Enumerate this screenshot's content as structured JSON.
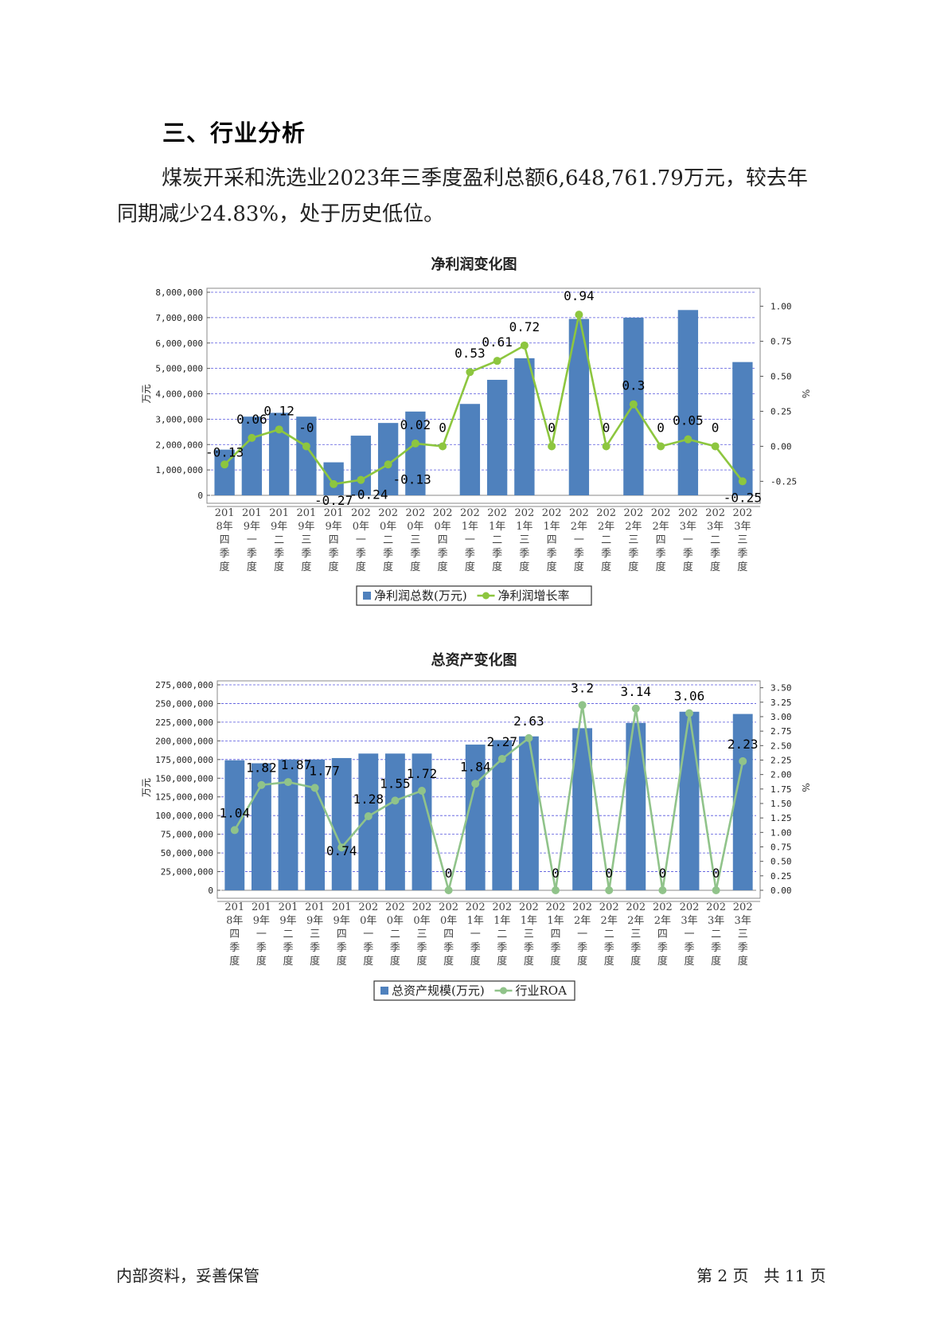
{
  "section": {
    "title": "三、行业分析"
  },
  "paragraph": {
    "line1": "煤炭开采和洗选业2023年三季度盈利总额6,648,761.79万元，较去年",
    "line2": "同期减少24.83%，处于历史低位。"
  },
  "footer": {
    "left": "内部资料，妥善保管",
    "right": "第 2 页   共 11 页"
  },
  "colors": {
    "bar": "#4f81bd",
    "line": "#8dc63f",
    "line2": "#90c38a",
    "grid": "#5555dd"
  },
  "chart_data": [
    {
      "type": "bar",
      "title": "净利润变化图",
      "ylabel": "万元",
      "y2label": "%",
      "ylim": [
        0,
        8000000
      ],
      "y2lim": [
        -0.35,
        1.1
      ],
      "yticks": [
        "8,000,000",
        "7,000,000",
        "6,000,000",
        "5,000,000",
        "4,000,000",
        "3,000,000",
        "2,000,000",
        "1,000,000",
        "0"
      ],
      "y2ticks": [
        "1.00",
        "0.75",
        "0.50",
        "0.25",
        "0.00",
        "-0.25"
      ],
      "categories": [
        "2018年四季度",
        "2019年一季度",
        "2019年二季度",
        "2019年三季度",
        "2019年四季度",
        "2020年一季度",
        "2020年二季度",
        "2020年三季度",
        "2020年四季度",
        "2021年一季度",
        "2021年二季度",
        "2021年三季度",
        "2021年四季度",
        "2022年一季度",
        "2022年二季度",
        "2022年三季度",
        "2022年四季度",
        "2023年一季度",
        "2023年二季度",
        "2023年三季度"
      ],
      "category_lines": [
        [
          "201",
          "8年",
          "四",
          "季",
          "度"
        ],
        [
          "201",
          "9年",
          "一",
          "季",
          "度"
        ],
        [
          "201",
          "9年",
          "二",
          "季",
          "度"
        ],
        [
          "201",
          "9年",
          "三",
          "季",
          "度"
        ],
        [
          "201",
          "9年",
          "四",
          "季",
          "度"
        ],
        [
          "202",
          "0年",
          "一",
          "季",
          "度"
        ],
        [
          "202",
          "0年",
          "二",
          "季",
          "度"
        ],
        [
          "202",
          "0年",
          "三",
          "季",
          "度"
        ],
        [
          "202",
          "0年",
          "四",
          "季",
          "度"
        ],
        [
          "202",
          "1年",
          "一",
          "季",
          "度"
        ],
        [
          "202",
          "1年",
          "二",
          "季",
          "度"
        ],
        [
          "202",
          "1年",
          "三",
          "季",
          "度"
        ],
        [
          "202",
          "1年",
          "四",
          "季",
          "度"
        ],
        [
          "202",
          "2年",
          "一",
          "季",
          "度"
        ],
        [
          "202",
          "2年",
          "二",
          "季",
          "度"
        ],
        [
          "202",
          "2年",
          "三",
          "季",
          "度"
        ],
        [
          "202",
          "2年",
          "四",
          "季",
          "度"
        ],
        [
          "202",
          "3年",
          "一",
          "季",
          "度"
        ],
        [
          "202",
          "3年",
          "二",
          "季",
          "度"
        ],
        [
          "202",
          "3年",
          "三",
          "季",
          "度"
        ]
      ],
      "series": [
        {
          "name": "净利润总数(万元)",
          "kind": "bar",
          "values": [
            1800000,
            3100000,
            3250000,
            3100000,
            1300000,
            2350000,
            2850000,
            3300000,
            0,
            3600000,
            4550000,
            5400000,
            0,
            6950000,
            0,
            7000000,
            0,
            7300000,
            0,
            5250000
          ]
        },
        {
          "name": "净利润增长率",
          "kind": "line",
          "values": [
            -0.13,
            0.06,
            0.12,
            -0.0,
            -0.27,
            -0.24,
            -0.13,
            0.02,
            0,
            0.53,
            0.61,
            0.72,
            0,
            0.94,
            0,
            0.3,
            0,
            0.05,
            0,
            -0.25
          ]
        }
      ],
      "labels": [
        "-0.13",
        "0.06",
        "0.12",
        "-0",
        "-0.27",
        "-0.24",
        "-0.13",
        "0.02",
        "0",
        "0.53",
        "0.61",
        "0.72",
        "0",
        "0.94",
        "0",
        "0.3",
        "0",
        "0.05",
        "0",
        "-0.25"
      ],
      "legend": "bottom",
      "grid": true
    },
    {
      "type": "bar",
      "title": "总资产变化图",
      "ylabel": "万元",
      "y2label": "%",
      "ylim": [
        0,
        275000000
      ],
      "y2lim": [
        0,
        3.55
      ],
      "yticks": [
        "275,000,000",
        "250,000,000",
        "225,000,000",
        "200,000,000",
        "175,000,000",
        "150,000,000",
        "125,000,000",
        "100,000,000",
        "75,000,000",
        "50,000,000",
        "25,000,000",
        "0"
      ],
      "y2ticks": [
        "3.50",
        "3.25",
        "3.00",
        "2.75",
        "2.50",
        "2.25",
        "2.00",
        "1.75",
        "1.50",
        "1.25",
        "1.00",
        "0.75",
        "0.50",
        "0.25",
        "0.00"
      ],
      "category_lines": [
        [
          "201",
          "8年",
          "四",
          "季",
          "度"
        ],
        [
          "201",
          "9年",
          "一",
          "季",
          "度"
        ],
        [
          "201",
          "9年",
          "二",
          "季",
          "度"
        ],
        [
          "201",
          "9年",
          "三",
          "季",
          "度"
        ],
        [
          "201",
          "9年",
          "四",
          "季",
          "度"
        ],
        [
          "202",
          "0年",
          "一",
          "季",
          "度"
        ],
        [
          "202",
          "0年",
          "二",
          "季",
          "度"
        ],
        [
          "202",
          "0年",
          "三",
          "季",
          "度"
        ],
        [
          "202",
          "0年",
          "四",
          "季",
          "度"
        ],
        [
          "202",
          "1年",
          "一",
          "季",
          "度"
        ],
        [
          "202",
          "1年",
          "二",
          "季",
          "度"
        ],
        [
          "202",
          "1年",
          "三",
          "季",
          "度"
        ],
        [
          "202",
          "1年",
          "四",
          "季",
          "度"
        ],
        [
          "202",
          "2年",
          "一",
          "季",
          "度"
        ],
        [
          "202",
          "2年",
          "二",
          "季",
          "度"
        ],
        [
          "202",
          "2年",
          "三",
          "季",
          "度"
        ],
        [
          "202",
          "2年",
          "四",
          "季",
          "度"
        ],
        [
          "202",
          "3年",
          "一",
          "季",
          "度"
        ],
        [
          "202",
          "3年",
          "二",
          "季",
          "度"
        ],
        [
          "202",
          "3年",
          "三",
          "季",
          "度"
        ]
      ],
      "series": [
        {
          "name": "总资产规模(万元)",
          "kind": "bar",
          "values": [
            174000000,
            170000000,
            175000000,
            175000000,
            177000000,
            183000000,
            183000000,
            183000000,
            0,
            195000000,
            201000000,
            206000000,
            0,
            217000000,
            0,
            224000000,
            0,
            239000000,
            0,
            236000000
          ]
        },
        {
          "name": "行业ROA",
          "kind": "line",
          "values": [
            1.04,
            1.82,
            1.87,
            1.77,
            0.74,
            1.28,
            1.55,
            1.72,
            0,
            1.84,
            2.27,
            2.63,
            0,
            3.2,
            0,
            3.14,
            0,
            3.06,
            0,
            2.23
          ]
        }
      ],
      "labels": [
        "1.04",
        "1.82",
        "1.87",
        "1.77",
        "0.74",
        "1.28",
        "1.55",
        "1.72",
        "0",
        "1.84",
        "2.27",
        "2.63",
        "0",
        "3.2",
        "0",
        "3.14",
        "0",
        "3.06",
        "0",
        "2.23"
      ],
      "legend": "bottom",
      "grid": true
    }
  ]
}
